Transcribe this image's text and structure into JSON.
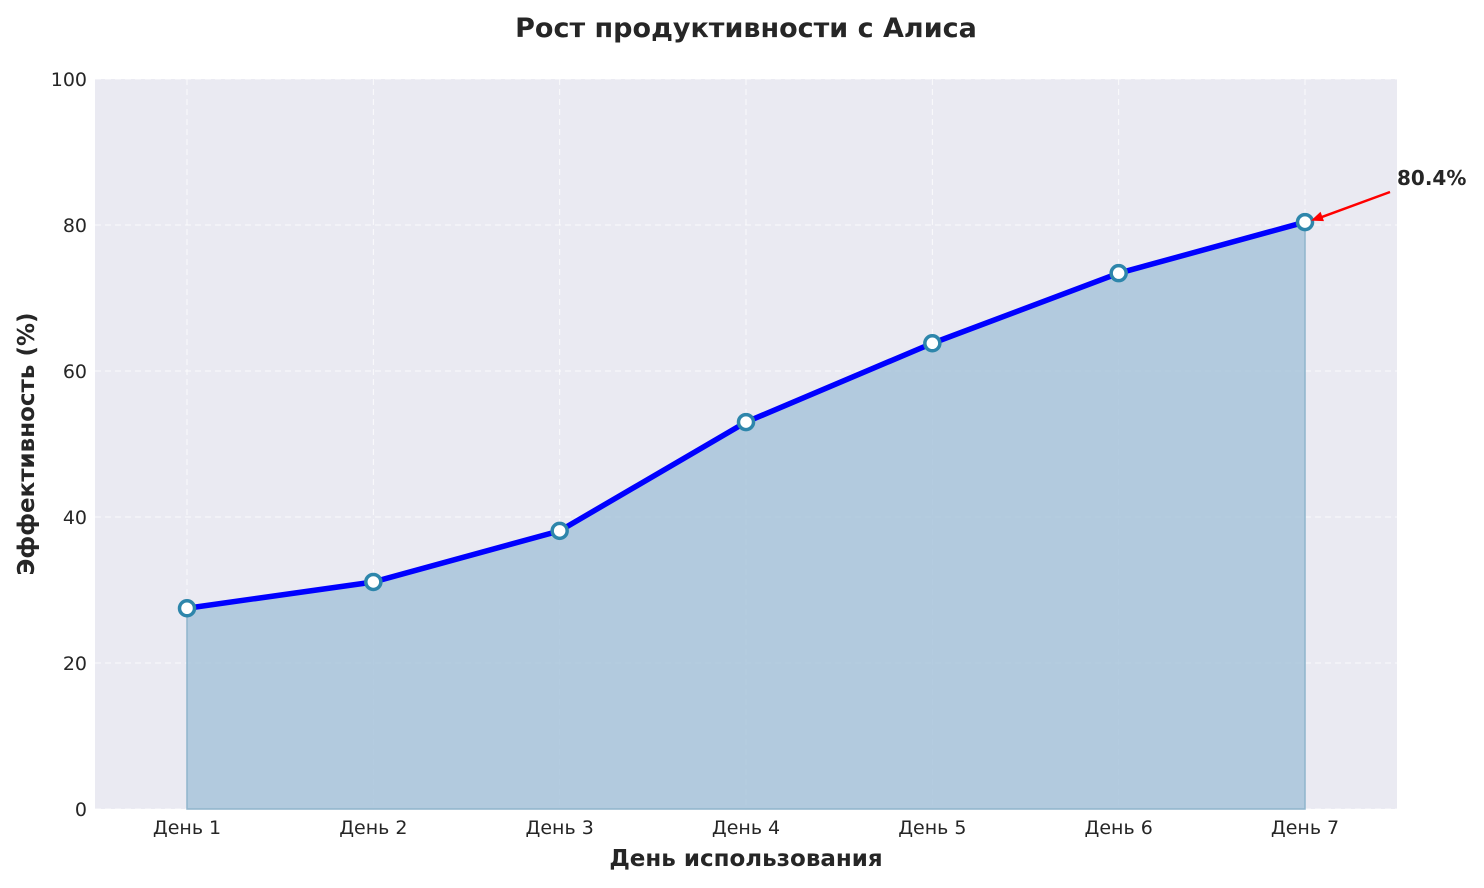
{
  "chart_data": {
    "type": "area",
    "title": "Рост продуктивности с Алиса",
    "xlabel": "День использования",
    "ylabel": "Эффективность (%)",
    "categories": [
      "День 1",
      "День 2",
      "День 3",
      "День 4",
      "День 5",
      "День 6",
      "День 7"
    ],
    "values": [
      27.5,
      31.1,
      38.1,
      53.0,
      63.8,
      73.4,
      80.4
    ],
    "ylim": [
      0,
      100
    ],
    "yticks": [
      "0",
      "20",
      "40",
      "60",
      "80",
      "100"
    ],
    "grid": true,
    "annotation": {
      "text": "80.4%",
      "point_index": 6,
      "arrow_color": "#ff0000"
    },
    "colors": {
      "line": "#0000ff",
      "fill": "#a8c4da",
      "marker_edge": "#2e86ab",
      "marker_face": "#ffffff",
      "background": "#eaeaf2"
    }
  }
}
